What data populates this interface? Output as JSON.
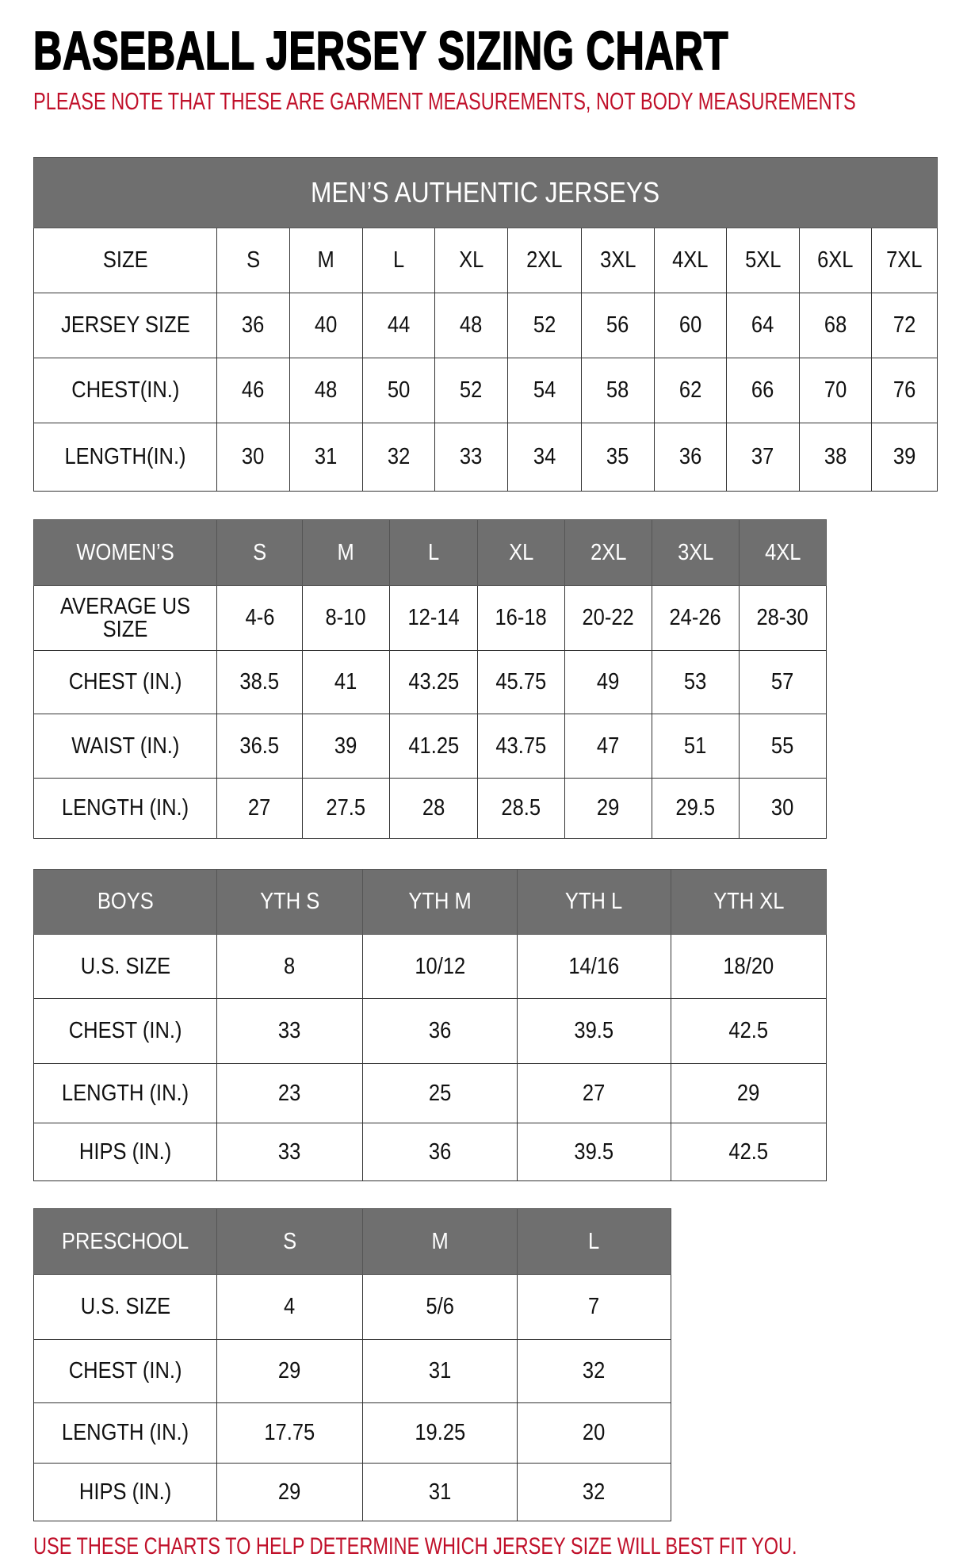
{
  "title": "BASEBALL JERSEY SIZING CHART",
  "note": "PLEASE NOTE THAT THESE ARE GARMENT MEASUREMENTS, NOT BODY MEASUREMENTS",
  "footer": "USE THESE CHARTS TO HELP DETERMINE WHICH JERSEY SIZE WILL BEST FIT YOU.",
  "colors": {
    "header_gray": "#6f6f6f",
    "accent_red": "#c0102a"
  },
  "tables": [
    {
      "id": "mens",
      "banner": "MEN’S AUTHENTIC JERSEYS",
      "header": [
        "SIZE",
        "S",
        "M",
        "L",
        "XL",
        "2XL",
        "3XL",
        "4XL",
        "5XL",
        "6XL",
        "7XL"
      ],
      "header_gray": false,
      "rows": [
        [
          "JERSEY SIZE",
          "36",
          "40",
          "44",
          "48",
          "52",
          "56",
          "60",
          "64",
          "68",
          "72"
        ],
        [
          "CHEST(IN.)",
          "46",
          "48",
          "50",
          "52",
          "54",
          "58",
          "62",
          "66",
          "70",
          "76"
        ],
        [
          "LENGTH(IN.)",
          "30",
          "31",
          "32",
          "33",
          "34",
          "35",
          "36",
          "37",
          "38",
          "39"
        ]
      ]
    },
    {
      "id": "womens",
      "header": [
        "WOMEN’S",
        "S",
        "M",
        "L",
        "XL",
        "2XL",
        "3XL",
        "4XL"
      ],
      "header_gray": true,
      "rows": [
        [
          "AVERAGE US SIZE",
          "4-6",
          "8-10",
          "12-14",
          "16-18",
          "20-22",
          "24-26",
          "28-30"
        ],
        [
          "CHEST (IN.)",
          "38.5",
          "41",
          "43.25",
          "45.75",
          "49",
          "53",
          "57"
        ],
        [
          "WAIST (IN.)",
          "36.5",
          "39",
          "41.25",
          "43.75",
          "47",
          "51",
          "55"
        ],
        [
          "LENGTH (IN.)",
          "27",
          "27.5",
          "28",
          "28.5",
          "29",
          "29.5",
          "30"
        ]
      ]
    },
    {
      "id": "boys",
      "header": [
        "BOYS",
        "YTH S",
        "YTH M",
        "YTH L",
        "YTH XL"
      ],
      "header_gray": true,
      "rows": [
        [
          "U.S. SIZE",
          "8",
          "10/12",
          "14/16",
          "18/20"
        ],
        [
          "CHEST (IN.)",
          "33",
          "36",
          "39.5",
          "42.5"
        ],
        [
          "LENGTH (IN.)",
          "23",
          "25",
          "27",
          "29"
        ],
        [
          "HIPS (IN.)",
          "33",
          "36",
          "39.5",
          "42.5"
        ]
      ]
    },
    {
      "id": "preschool",
      "header": [
        "PRESCHOOL",
        "S",
        "M",
        "L"
      ],
      "header_gray": true,
      "rows": [
        [
          "U.S. SIZE",
          "4",
          "5/6",
          "7"
        ],
        [
          "CHEST (IN.)",
          "29",
          "31",
          "32"
        ],
        [
          "LENGTH (IN.)",
          "17.75",
          "19.25",
          "20"
        ],
        [
          "HIPS (IN.)",
          "29",
          "31",
          "32"
        ]
      ]
    }
  ]
}
